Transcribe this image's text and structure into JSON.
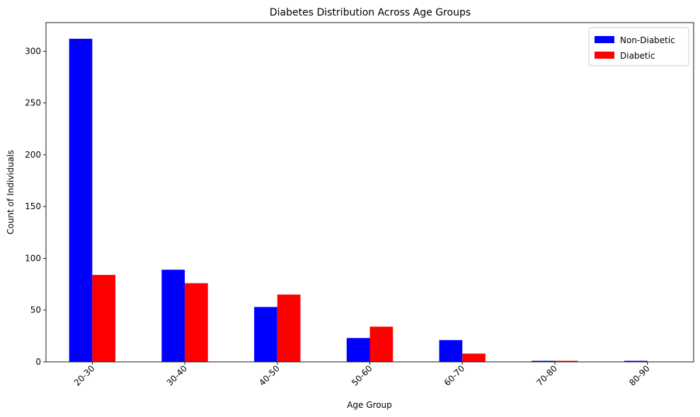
{
  "chart_data": {
    "type": "bar",
    "title": "Diabetes Distribution Across Age Groups",
    "xlabel": "Age Group",
    "ylabel": "Count of Individuals",
    "categories": [
      "20-30",
      "30-40",
      "40-50",
      "50-60",
      "60-70",
      "70-80",
      "80-90"
    ],
    "series": [
      {
        "name": "Non-Diabetic",
        "color": "#0000ff",
        "values": [
          312,
          89,
          53,
          23,
          21,
          1,
          1
        ]
      },
      {
        "name": "Diabetic",
        "color": "#ff0000",
        "values": [
          84,
          76,
          65,
          34,
          8,
          1,
          0
        ]
      }
    ],
    "ylim": [
      0,
      327.6
    ],
    "yticks": [
      0,
      50,
      100,
      150,
      200,
      250,
      300
    ],
    "legend_position": "top-right",
    "grid": false
  }
}
